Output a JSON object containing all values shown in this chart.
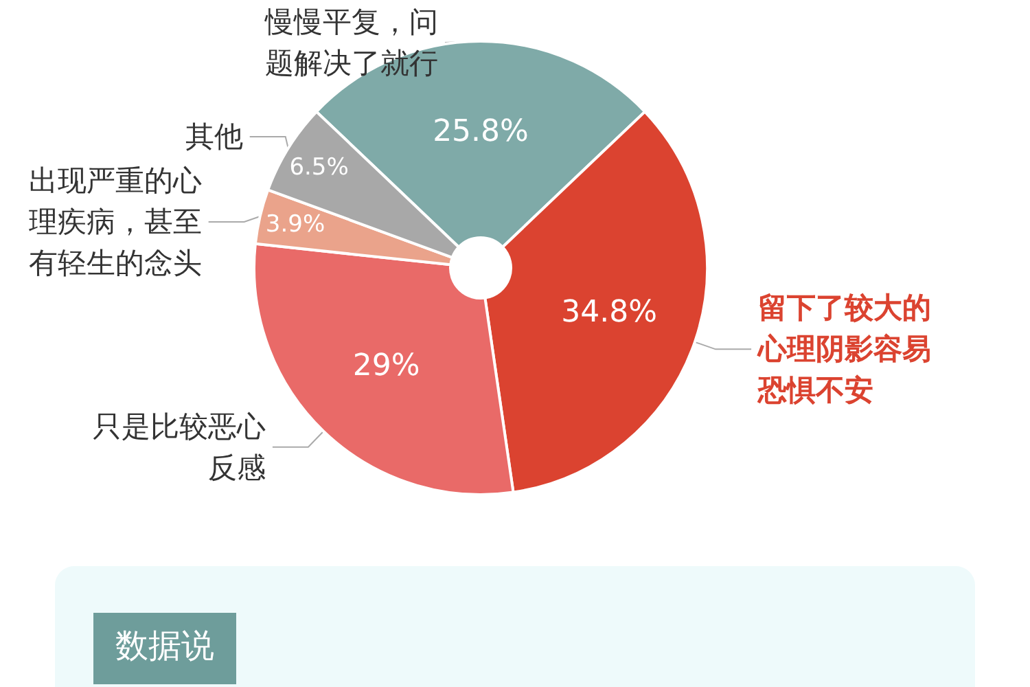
{
  "chart_data": {
    "type": "donut",
    "categories": [
      "慢慢平复，问题解决了就行",
      "留下了较大的心理阴影容易恐惧不安",
      "只是比较恶心反感",
      "出现严重的心理疾病，甚至有轻生的念头",
      "其他"
    ],
    "values": [
      25.8,
      34.8,
      29,
      3.9,
      6.5
    ],
    "value_labels": [
      "25.8%",
      "34.8%",
      "29%",
      "3.9%",
      "6.5%"
    ],
    "colors": [
      "#7faaa8",
      "#db4330",
      "#e96a68",
      "#eaa38b",
      "#a8a8a8"
    ],
    "annotations": [
      "数据说"
    ]
  }
}
